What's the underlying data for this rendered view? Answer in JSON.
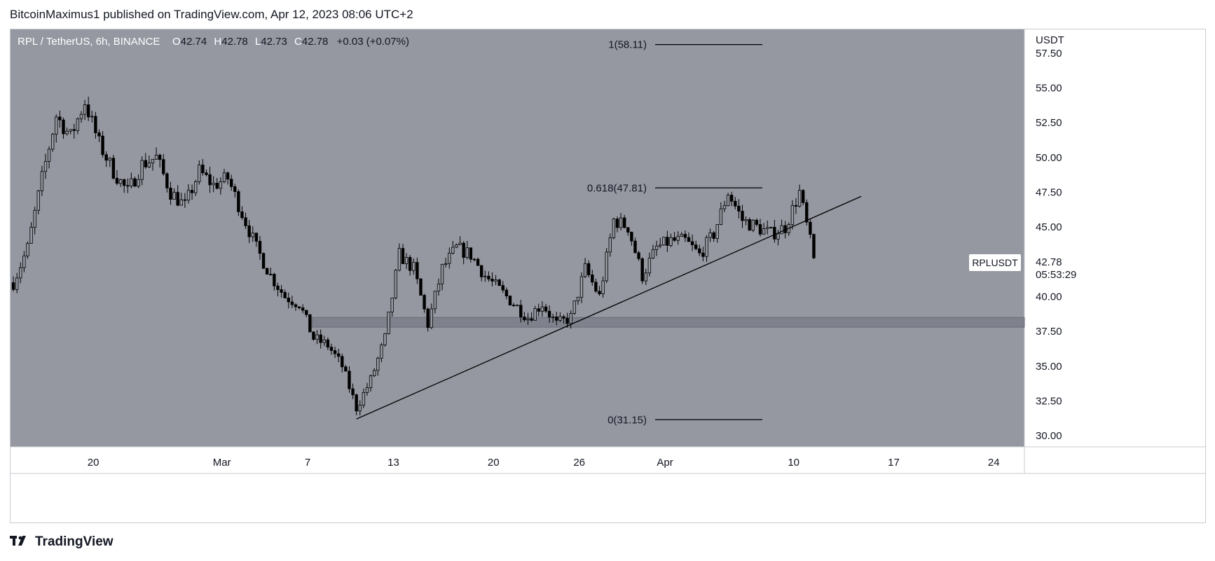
{
  "header": {
    "publisher_line": "BitcoinMaximus1 published on TradingView.com, Apr 12, 2023 08:06 UTC+2"
  },
  "legend": {
    "symbol": "RPL / TetherUS, 6h, BINANCE",
    "o_label": "O",
    "o_value": "42.74",
    "h_label": "H",
    "h_value": "42.78",
    "l_label": "L",
    "l_value": "42.73",
    "c_label": "C",
    "c_value": "42.78",
    "change": "+0.03 (+0.07%)"
  },
  "price_axis": {
    "currency": "USDT",
    "ticks": [
      "57.50",
      "55.00",
      "52.50",
      "50.00",
      "47.50",
      "45.00",
      "42.50",
      "40.00",
      "37.50",
      "35.00",
      "32.50",
      "30.00"
    ]
  },
  "time_axis": {
    "ticks": [
      "20",
      "Mar",
      "7",
      "13",
      "20",
      "26",
      "Apr",
      "10",
      "17",
      "24"
    ]
  },
  "last_price": {
    "symbol_tag": "RPLUSDT",
    "price": "42.78",
    "countdown": "05:53:29"
  },
  "fib_labels": {
    "level_1": "1(58.11)",
    "level_0618": "0.618(47.81)",
    "level_0": "0(31.15)"
  },
  "footer": {
    "brand": "TradingView"
  },
  "colors": {
    "plot_bg": "#9598a1",
    "candle": "#000000",
    "support_zone": "#787b86",
    "axis_text": "#131722"
  },
  "chart_data": {
    "type": "candlestick",
    "timeframe": "6h",
    "ylim": [
      29.2,
      59.2
    ],
    "y_ticks": [
      57.5,
      55,
      52.5,
      50,
      47.5,
      45,
      42.5,
      40,
      37.5,
      35,
      32.5,
      30
    ],
    "x_ticks": [
      "20",
      "Mar",
      "7",
      "13",
      "20",
      "26",
      "Apr",
      "10",
      "17",
      "24"
    ],
    "price_path": [
      [
        "Feb 15",
        41.0
      ],
      [
        "Feb 16",
        43.5
      ],
      [
        "Feb 17",
        48.5
      ],
      [
        "Feb 18",
        53.0
      ],
      [
        "Feb 19",
        51.5
      ],
      [
        "Feb 20",
        54.0
      ],
      [
        "Feb 21",
        51.0
      ],
      [
        "Feb 22",
        49.0
      ],
      [
        "Feb 23",
        47.5
      ],
      [
        "Feb 24",
        49.5
      ],
      [
        "Feb 25",
        50.0
      ],
      [
        "Feb 26",
        47.5
      ],
      [
        "Feb 27",
        46.5
      ],
      [
        "Feb 28",
        49.0
      ],
      [
        "Mar 1",
        48.0
      ],
      [
        "Mar 2",
        48.5
      ],
      [
        "Mar 3",
        46.0
      ],
      [
        "Mar 4",
        43.5
      ],
      [
        "Mar 5",
        41.5
      ],
      [
        "Mar 6",
        40.0
      ],
      [
        "Mar 7",
        39.5
      ],
      [
        "Mar 8",
        37.0
      ],
      [
        "Mar 9",
        36.5
      ],
      [
        "Mar 10",
        35.0
      ],
      [
        "Mar 11",
        32.0
      ],
      [
        "Mar 12",
        34.0
      ],
      [
        "Mar 13",
        37.0
      ],
      [
        "Mar 14",
        43.0
      ],
      [
        "Mar 15",
        42.0
      ],
      [
        "Mar 16",
        38.0
      ],
      [
        "Mar 17",
        42.0
      ],
      [
        "Mar 18",
        43.5
      ],
      [
        "Mar 19",
        43.0
      ],
      [
        "Mar 20",
        41.5
      ],
      [
        "Mar 21",
        40.5
      ],
      [
        "Mar 22",
        39.5
      ],
      [
        "Mar 23",
        38.5
      ],
      [
        "Mar 24",
        39.5
      ],
      [
        "Mar 25",
        38.0
      ],
      [
        "Mar 26",
        38.5
      ],
      [
        "Mar 27",
        42.0
      ],
      [
        "Mar 28",
        40.0
      ],
      [
        "Mar 29",
        45.5
      ],
      [
        "Mar 30",
        45.0
      ],
      [
        "Mar 31",
        41.5
      ],
      [
        "Apr 1",
        43.5
      ],
      [
        "Apr 2",
        44.0
      ],
      [
        "Apr 3",
        44.0
      ],
      [
        "Apr 4",
        43.0
      ],
      [
        "Apr 5",
        44.5
      ],
      [
        "Apr 6",
        47.5
      ],
      [
        "Apr 7",
        45.5
      ],
      [
        "Apr 8",
        45.0
      ],
      [
        "Apr 9",
        44.5
      ],
      [
        "Apr 10",
        45.0
      ],
      [
        "Apr 11",
        47.5
      ],
      [
        "Apr 12",
        42.78
      ]
    ],
    "fib_levels": [
      {
        "ratio": "1",
        "price": 58.11
      },
      {
        "ratio": "0.618",
        "price": 47.81
      },
      {
        "ratio": "0",
        "price": 31.15
      }
    ],
    "support_zone": {
      "low": 37.8,
      "high": 38.5
    },
    "trendline": {
      "from": [
        "Mar 11",
        31.2
      ],
      "to": [
        "Apr 16",
        47.2
      ]
    },
    "last_price": 42.78
  }
}
